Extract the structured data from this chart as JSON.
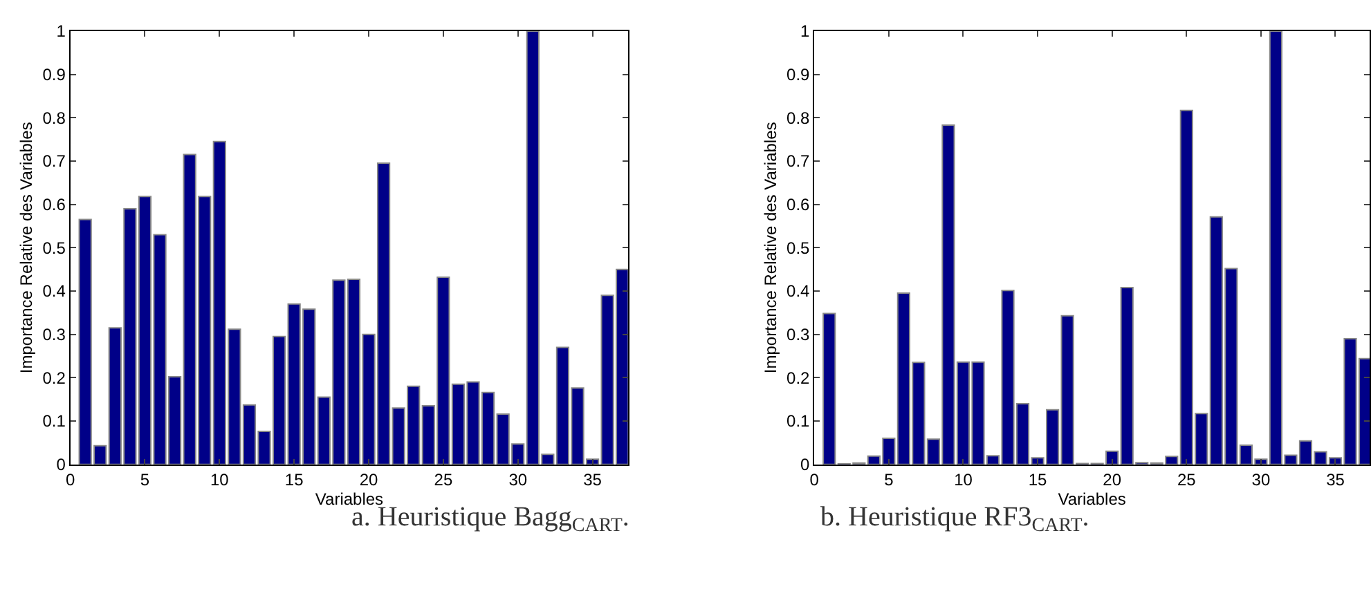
{
  "chart_data": [
    {
      "type": "bar",
      "ylabel": "Importance Relative des Variables",
      "xlabel": "Variables",
      "annotations": [
        "a. Heuristique Bagg$_{CART}$."
      ],
      "x": [
        1,
        2,
        3,
        4,
        5,
        6,
        7,
        8,
        9,
        10,
        11,
        12,
        13,
        14,
        15,
        16,
        17,
        18,
        19,
        20,
        21,
        22,
        23,
        24,
        25,
        26,
        27,
        28,
        29,
        30,
        31,
        32,
        33,
        34,
        35,
        36,
        37
      ],
      "values": [
        0.565,
        0.043,
        0.315,
        0.59,
        0.618,
        0.53,
        0.202,
        0.715,
        0.618,
        0.745,
        0.312,
        0.137,
        0.076,
        0.295,
        0.37,
        0.358,
        0.155,
        0.425,
        0.427,
        0.3,
        0.695,
        0.13,
        0.18,
        0.135,
        0.432,
        0.185,
        0.19,
        0.166,
        0.116,
        0.047,
        1,
        0.023,
        0.27,
        0.176,
        0.012,
        0.39,
        0.45
      ],
      "color": "#000088",
      "xlim": [
        0,
        37.4
      ],
      "ylim": [
        0,
        1
      ],
      "xticks": [
        0,
        5,
        10,
        15,
        20,
        25,
        30,
        35
      ],
      "yticks": [
        0,
        0.1,
        0.2,
        0.3,
        0.4,
        0.5,
        0.6,
        0.7,
        0.8,
        0.9,
        1
      ]
    },
    {
      "type": "bar",
      "ylabel": "Importance Relative des Variables",
      "xlabel": "Variables",
      "annotations": [
        "b. Heuristique RF3$_{CART}$."
      ],
      "x": [
        1,
        2,
        3,
        4,
        5,
        6,
        7,
        8,
        9,
        10,
        11,
        12,
        13,
        14,
        15,
        16,
        17,
        18,
        19,
        20,
        21,
        22,
        23,
        24,
        25,
        26,
        27,
        28,
        29,
        30,
        31,
        32,
        33,
        34,
        35,
        36,
        37
      ],
      "values": [
        0.348,
        0.001,
        0.003,
        0.019,
        0.06,
        0.395,
        0.235,
        0.058,
        0.783,
        0.236,
        0.236,
        0.02,
        0.401,
        0.14,
        0.015,
        0.126,
        0.343,
        0.002,
        0.002,
        0.03,
        0.408,
        0.004,
        0.003,
        0.018,
        0.817,
        0.117,
        0.571,
        0.452,
        0.044,
        0.012,
        1,
        0.021,
        0.054,
        0.029,
        0.015,
        0.29,
        0.244
      ],
      "color": "#000088",
      "xlim": [
        0,
        37.3
      ],
      "ylim": [
        0,
        1
      ],
      "xticks": [
        0,
        5,
        10,
        15,
        20,
        25,
        30,
        35
      ],
      "yticks": [
        0,
        0.1,
        0.2,
        0.3,
        0.4,
        0.5,
        0.6,
        0.7,
        0.8,
        0.9,
        1
      ]
    }
  ]
}
